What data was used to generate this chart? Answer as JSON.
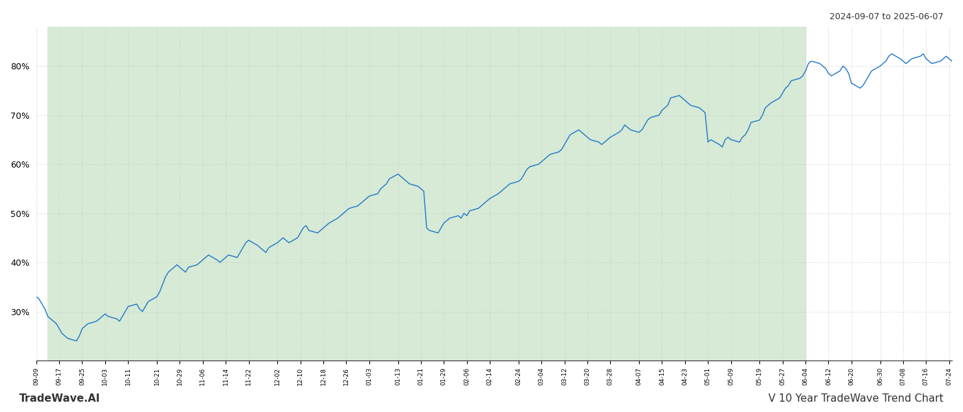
{
  "title_top_right": "2024-09-07 to 2025-06-07",
  "title_bottom_right": "V 10 Year TradeWave Trend Chart",
  "title_bottom_left": "TradeWave.AI",
  "line_color": "#2176c7",
  "bg_color": "#ffffff",
  "shaded_region_color": "#d6ead6",
  "shaded_start": "2024-09-13",
  "shaded_end": "2025-06-04",
  "y_ticks": [
    30,
    40,
    50,
    60,
    70,
    80
  ],
  "ylim": [
    20,
    88
  ],
  "grid_color": "#cccccc",
  "grid_linestyle": ":",
  "x_start": "2024-09-07",
  "x_end": "2025-09-02",
  "values": [
    33.0,
    32.5,
    31.5,
    30.5,
    29.0,
    27.5,
    26.5,
    25.5,
    25.0,
    24.5,
    24.0,
    25.0,
    26.5,
    27.0,
    27.5,
    28.0,
    28.5,
    29.0,
    29.5,
    29.0,
    28.5,
    28.0,
    29.0,
    30.0,
    31.0,
    31.5,
    30.5,
    30.0,
    31.0,
    32.0,
    33.0,
    34.0,
    35.5,
    37.0,
    38.0,
    39.5,
    39.0,
    38.5,
    38.0,
    39.0,
    39.5,
    40.0,
    40.5,
    41.0,
    41.5,
    40.5,
    40.0,
    40.5,
    41.0,
    41.5,
    41.0,
    42.0,
    43.0,
    44.0,
    44.5,
    43.5,
    43.0,
    42.5,
    42.0,
    43.0,
    44.0,
    44.5,
    45.0,
    44.5,
    44.0,
    45.0,
    46.0,
    47.0,
    47.5,
    46.5,
    46.0,
    46.5,
    47.0,
    47.5,
    48.0,
    49.0,
    49.5,
    50.0,
    50.5,
    51.0,
    51.5,
    52.0,
    52.5,
    53.0,
    53.5,
    54.0,
    55.0,
    55.5,
    56.0,
    57.0,
    58.0,
    57.5,
    57.0,
    56.5,
    56.0,
    55.5,
    55.0,
    54.5,
    47.0,
    46.5,
    46.0,
    47.0,
    48.0,
    48.5,
    49.0,
    49.5,
    49.0,
    50.0,
    49.5,
    50.5,
    51.0,
    51.5,
    52.0,
    52.5,
    53.0,
    54.0,
    54.5,
    55.0,
    55.5,
    56.0,
    56.5,
    57.0,
    58.0,
    59.0,
    59.5,
    60.0,
    60.5,
    61.0,
    61.5,
    62.0,
    62.5,
    63.0,
    64.0,
    65.0,
    66.0,
    67.0,
    66.5,
    66.0,
    65.5,
    65.0,
    64.5,
    64.0,
    64.5,
    65.0,
    65.5,
    66.5,
    67.0,
    68.0,
    67.5,
    67.0,
    66.5,
    67.0,
    68.0,
    69.0,
    69.5,
    70.0,
    71.0,
    71.5,
    72.0,
    73.5,
    74.0,
    73.5,
    73.0,
    72.5,
    72.0,
    71.5,
    71.0,
    70.5,
    64.5,
    65.0,
    64.0,
    63.5,
    65.0,
    65.5,
    65.0,
    64.5,
    65.5,
    66.0,
    67.0,
    68.5,
    69.0,
    70.0,
    71.5,
    72.0,
    72.5,
    73.5,
    74.5,
    75.5,
    76.0,
    77.0,
    77.5,
    78.0,
    79.0,
    80.5,
    81.0,
    80.5,
    80.0,
    79.5,
    78.5,
    78.0,
    79.0,
    80.0,
    79.5,
    78.5,
    76.5,
    75.5,
    76.0,
    77.0,
    78.0,
    79.0,
    80.0,
    80.5,
    81.0,
    82.0,
    82.5,
    81.5,
    81.0,
    80.5,
    81.0,
    81.5,
    82.0,
    82.5,
    81.5,
    81.0,
    80.5,
    81.0,
    81.5,
    82.0,
    81.5,
    81.0
  ]
}
